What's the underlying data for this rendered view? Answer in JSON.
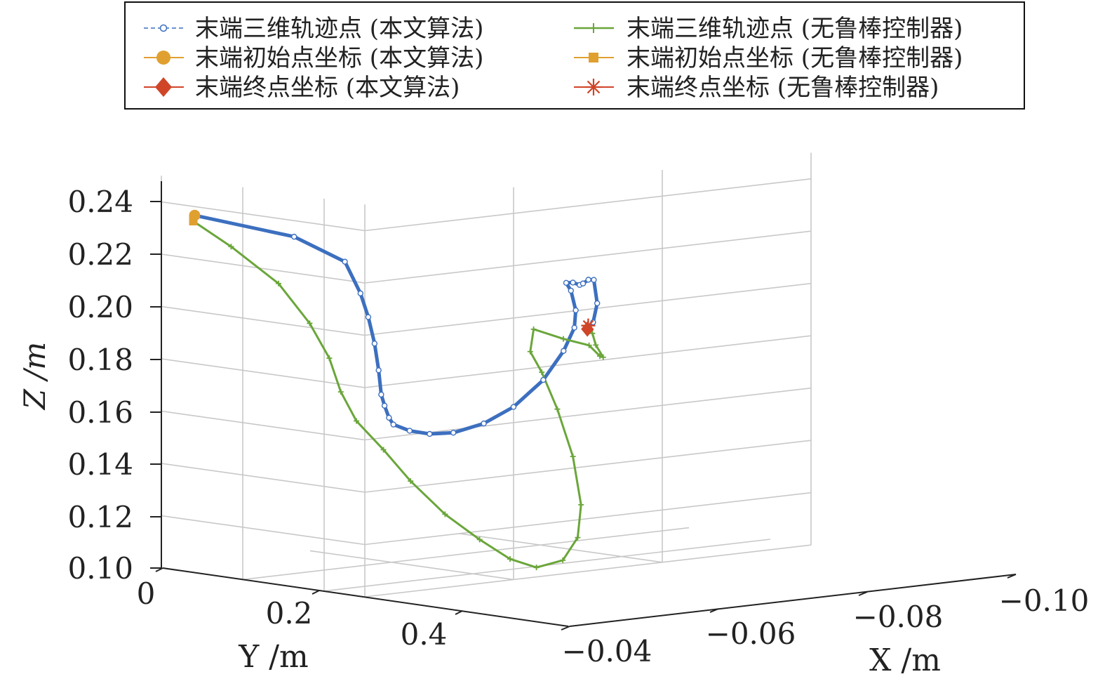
{
  "chart_data": {
    "type": "line",
    "projection": "3d",
    "grid": true,
    "legend_position": "top",
    "xlabel": "X /m",
    "ylabel": "Y /m",
    "zlabel": "Z /m",
    "x_ticks": [
      "−0.04",
      "−0.06",
      "−0.08",
      "−0.10"
    ],
    "y_ticks": [
      "0",
      "0.2",
      "0.4"
    ],
    "z_ticks": [
      "0.24",
      "0.22",
      "0.20",
      "0.18",
      "0.16",
      "0.14",
      "0.12",
      "0.10"
    ],
    "xlim": [
      -0.04,
      -0.1
    ],
    "ylim": [
      0,
      0.5
    ],
    "zlim": [
      0.1,
      0.24
    ],
    "colors": {
      "blue": "#3c6fbf",
      "green": "#6aa63a",
      "orange": "#e0a030",
      "red": "#d04528"
    },
    "legend": [
      {
        "label": "末端三维轨迹点 (本文算法)",
        "color": "#3c6fbf",
        "marker": "circle-open"
      },
      {
        "label": "末端初始点坐标 (本文算法)",
        "color": "#e0a030",
        "marker": "circle"
      },
      {
        "label": "末端终点坐标 (本文算法)",
        "color": "#d04528",
        "marker": "diamond"
      },
      {
        "label": "末端三维轨迹点 (无鲁棒控制器)",
        "color": "#6aa63a",
        "marker": "plus"
      },
      {
        "label": "末端初始点坐标 (无鲁棒控制器)",
        "color": "#e0a030",
        "marker": "square"
      },
      {
        "label": "末端终点坐标 (无鲁棒控制器)",
        "color": "#d04528",
        "marker": "star"
      }
    ],
    "series": [
      {
        "name": "末端三维轨迹点 (本文算法)",
        "color": "#3c6fbf",
        "points": [
          [
            -0.0436,
            0.016,
            0.234
          ],
          [
            -0.048,
            0.18,
            0.228
          ],
          [
            -0.051,
            0.25,
            0.219
          ],
          [
            -0.052,
            0.27,
            0.207
          ],
          [
            -0.0525,
            0.28,
            0.198
          ],
          [
            -0.0528,
            0.29,
            0.188
          ],
          [
            -0.0528,
            0.3,
            0.178
          ],
          [
            -0.0526,
            0.31,
            0.169
          ],
          [
            -0.0525,
            0.32,
            0.165
          ],
          [
            -0.052,
            0.34,
            0.161
          ],
          [
            -0.0515,
            0.36,
            0.159
          ],
          [
            -0.0515,
            0.4,
            0.1575
          ],
          [
            -0.052,
            0.44,
            0.157
          ],
          [
            -0.053,
            0.48,
            0.158
          ],
          [
            -0.056,
            0.5,
            0.161
          ],
          [
            -0.06,
            0.5,
            0.166
          ],
          [
            -0.064,
            0.5,
            0.175
          ],
          [
            -0.067,
            0.495,
            0.185
          ],
          [
            -0.069,
            0.485,
            0.193
          ],
          [
            -0.07,
            0.47,
            0.199
          ],
          [
            -0.071,
            0.44,
            0.2055
          ],
          [
            -0.072,
            0.41,
            0.2075
          ],
          [
            -0.074,
            0.39,
            0.2065
          ],
          [
            -0.076,
            0.37,
            0.2045
          ],
          [
            -0.077,
            0.36,
            0.2045
          ],
          [
            -0.078,
            0.355,
            0.2055
          ],
          [
            -0.079,
            0.35,
            0.205
          ],
          [
            -0.08,
            0.34,
            0.1955
          ],
          [
            -0.08,
            0.33,
            0.188
          ],
          [
            -0.0795,
            0.325,
            0.1855
          ]
        ]
      },
      {
        "name": "末端三维轨迹点 (无鲁棒控制器)",
        "color": "#6aa63a",
        "points": [
          [
            -0.0432,
            0.02,
            0.232
          ],
          [
            -0.045,
            0.08,
            0.223
          ],
          [
            -0.047,
            0.16,
            0.21
          ],
          [
            -0.049,
            0.2,
            0.195
          ],
          [
            -0.05,
            0.23,
            0.182
          ],
          [
            -0.051,
            0.24,
            0.169
          ],
          [
            -0.052,
            0.26,
            0.158
          ],
          [
            -0.054,
            0.29,
            0.147
          ],
          [
            -0.056,
            0.32,
            0.135
          ],
          [
            -0.059,
            0.35,
            0.122
          ],
          [
            -0.062,
            0.38,
            0.112
          ],
          [
            -0.065,
            0.4,
            0.104
          ],
          [
            -0.068,
            0.41,
            0.1
          ],
          [
            -0.071,
            0.42,
            0.102
          ],
          [
            -0.073,
            0.42,
            0.11
          ],
          [
            -0.074,
            0.41,
            0.122
          ],
          [
            -0.074,
            0.39,
            0.14
          ],
          [
            -0.073,
            0.37,
            0.158
          ],
          [
            -0.072,
            0.35,
            0.172
          ],
          [
            -0.071,
            0.34,
            0.18
          ],
          [
            -0.072,
            0.33,
            0.188
          ],
          [
            -0.076,
            0.33,
            0.183
          ],
          [
            -0.08,
            0.32,
            0.179
          ],
          [
            -0.082,
            0.31,
            0.174
          ],
          [
            -0.083,
            0.3,
            0.173
          ],
          [
            -0.082,
            0.3,
            0.178
          ],
          [
            -0.081,
            0.31,
            0.183
          ],
          [
            -0.08,
            0.318,
            0.1865
          ]
        ]
      }
    ],
    "start_points": [
      {
        "name": "末端初始点坐标 (本文算法)",
        "point": [
          -0.0436,
          0.016,
          0.234
        ],
        "marker": "circle",
        "color": "#e0a030"
      },
      {
        "name": "末端初始点坐标 (无鲁棒控制器)",
        "point": [
          -0.0432,
          0.02,
          0.232
        ],
        "marker": "square",
        "color": "#e0a030"
      }
    ],
    "end_points": [
      {
        "name": "末端终点坐标 (本文算法)",
        "point": [
          -0.0795,
          0.325,
          0.1855
        ],
        "marker": "diamond",
        "color": "#d04528"
      },
      {
        "name": "末端终点坐标 (无鲁棒控制器)",
        "point": [
          -0.08,
          0.318,
          0.1865
        ],
        "marker": "star",
        "color": "#d04528"
      }
    ]
  }
}
